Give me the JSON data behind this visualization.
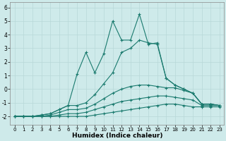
{
  "xlabel": "Humidex (Indice chaleur)",
  "background_color": "#ceeaea",
  "grid_color": "#b8d8d8",
  "line_color": "#1a7a6e",
  "xlim": [
    -0.5,
    23.5
  ],
  "ylim": [
    -2.6,
    6.4
  ],
  "yticks": [
    -2,
    -1,
    0,
    1,
    2,
    3,
    4,
    5,
    6
  ],
  "xticks": [
    0,
    1,
    2,
    3,
    4,
    5,
    6,
    7,
    8,
    9,
    10,
    11,
    12,
    13,
    14,
    15,
    16,
    17,
    18,
    19,
    20,
    21,
    22,
    23
  ],
  "lines": [
    {
      "x": [
        0,
        1,
        2,
        3,
        4,
        5,
        6,
        7,
        8,
        9,
        10,
        11,
        12,
        13,
        14,
        15,
        16,
        17,
        18,
        19,
        20,
        21,
        22,
        23
      ],
      "y": [
        -2,
        -2,
        -2,
        -2,
        -2,
        -2,
        -2,
        -2,
        -2,
        -1.9,
        -1.8,
        -1.7,
        -1.6,
        -1.5,
        -1.4,
        -1.3,
        -1.2,
        -1.1,
        -1.1,
        -1.2,
        -1.3,
        -1.3,
        -1.3,
        -1.3
      ]
    },
    {
      "x": [
        0,
        1,
        2,
        3,
        4,
        5,
        6,
        7,
        8,
        9,
        10,
        11,
        12,
        13,
        14,
        15,
        16,
        17,
        18,
        19,
        20,
        21,
        22,
        23
      ],
      "y": [
        -2,
        -2,
        -2,
        -2,
        -2,
        -1.9,
        -1.8,
        -1.8,
        -1.7,
        -1.5,
        -1.3,
        -1.1,
        -0.9,
        -0.8,
        -0.7,
        -0.6,
        -0.5,
        -0.5,
        -0.6,
        -0.7,
        -0.8,
        -1.2,
        -1.2,
        -1.2
      ]
    },
    {
      "x": [
        0,
        1,
        2,
        3,
        4,
        5,
        6,
        7,
        8,
        9,
        10,
        11,
        12,
        13,
        14,
        15,
        16,
        17,
        18,
        19,
        20,
        21,
        22,
        23
      ],
      "y": [
        -2,
        -2,
        -2,
        -2,
        -1.9,
        -1.7,
        -1.5,
        -1.5,
        -1.4,
        -1.1,
        -0.7,
        -0.3,
        0.0,
        0.2,
        0.3,
        0.3,
        0.2,
        0.1,
        0.1,
        -0.1,
        -0.3,
        -1.1,
        -1.1,
        -1.2
      ]
    },
    {
      "x": [
        0,
        1,
        2,
        3,
        4,
        5,
        6,
        7,
        8,
        9,
        10,
        11,
        12,
        13,
        14,
        15,
        16,
        17,
        18,
        19,
        20,
        21,
        22,
        23
      ],
      "y": [
        -2,
        -2,
        -2,
        -1.9,
        -1.8,
        -1.5,
        -1.2,
        -1.2,
        -1.0,
        -0.4,
        0.4,
        1.2,
        2.7,
        3.0,
        3.6,
        3.4,
        3.3,
        0.8,
        0.3,
        0.0,
        -0.3,
        -1.1,
        -1.1,
        -1.2
      ]
    },
    {
      "x": [
        0,
        1,
        2,
        3,
        4,
        5,
        6,
        7,
        8,
        9,
        10,
        11,
        12,
        13,
        14,
        15,
        16,
        17,
        18,
        19,
        20,
        21,
        22,
        23
      ],
      "y": [
        -2,
        -2,
        -2,
        -1.9,
        -1.8,
        -1.5,
        -1.2,
        1.1,
        2.7,
        1.2,
        2.6,
        5.0,
        3.6,
        3.6,
        5.5,
        3.3,
        3.4,
        0.8,
        0.3,
        0.0,
        -0.3,
        -1.1,
        -1.1,
        -1.2
      ]
    }
  ]
}
